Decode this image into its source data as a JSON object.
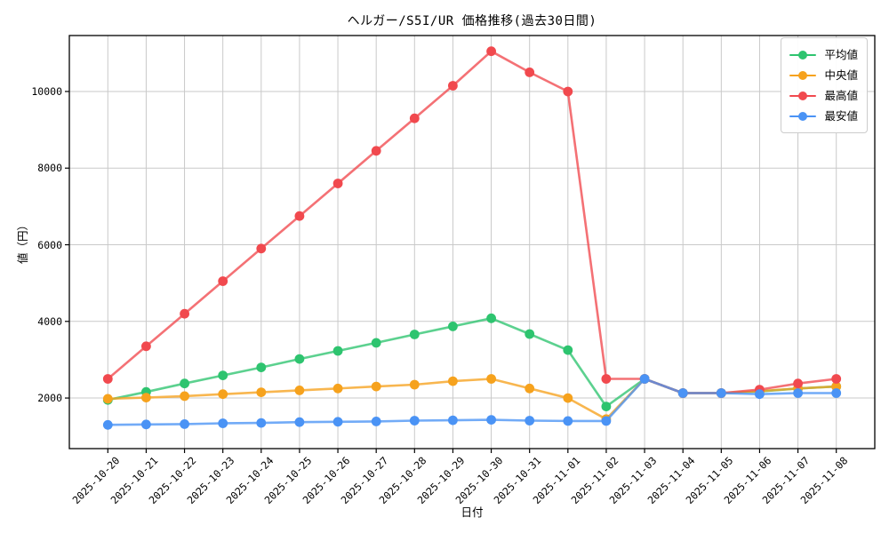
{
  "chart_data": {
    "type": "line",
    "title": "ヘルガー/S5I/UR 価格推移(過去30日間)",
    "xlabel": "日付",
    "ylabel": "値（円）",
    "x": [
      "2025-10-20",
      "2025-10-21",
      "2025-10-22",
      "2025-10-23",
      "2025-10-24",
      "2025-10-25",
      "2025-10-26",
      "2025-10-27",
      "2025-10-28",
      "2025-10-29",
      "2025-10-30",
      "2025-10-31",
      "2025-11-01",
      "2025-11-02",
      "2025-11-03",
      "2025-11-04",
      "2025-11-05",
      "2025-11-06",
      "2025-11-07",
      "2025-11-08"
    ],
    "series": [
      {
        "name": "平均値",
        "color": "#2ec46f",
        "values": [
          1950,
          2160,
          2380,
          2590,
          2800,
          3020,
          3230,
          3440,
          3660,
          3870,
          4080,
          3670,
          3250,
          1780,
          2500,
          2130,
          2130,
          2170,
          2250,
          2300
        ]
      },
      {
        "name": "中央値",
        "color": "#f6a21d",
        "values": [
          1980,
          2010,
          2050,
          2100,
          2150,
          2200,
          2250,
          2300,
          2350,
          2440,
          2500,
          2250,
          2000,
          1450,
          2500,
          2130,
          2130,
          2180,
          2250,
          2300
        ]
      },
      {
        "name": "最高値",
        "color": "#f1494e",
        "values": [
          2500,
          3350,
          4200,
          5050,
          5900,
          6750,
          7600,
          8450,
          9300,
          10150,
          11050,
          10500,
          10000,
          2500,
          2500,
          2130,
          2130,
          2220,
          2380,
          2500
        ]
      },
      {
        "name": "最安値",
        "color": "#4a93f5",
        "values": [
          1300,
          1310,
          1320,
          1340,
          1350,
          1370,
          1380,
          1390,
          1410,
          1420,
          1430,
          1410,
          1400,
          1400,
          2500,
          2130,
          2130,
          2100,
          2130,
          2130
        ]
      }
    ],
    "yticks": [
      2000,
      4000,
      6000,
      8000,
      10000
    ],
    "ylim": [
      680,
      11460
    ],
    "grid": true,
    "grid_color": "#c9c9c9",
    "spine_color": "#000000",
    "legend_position": "upper right"
  }
}
